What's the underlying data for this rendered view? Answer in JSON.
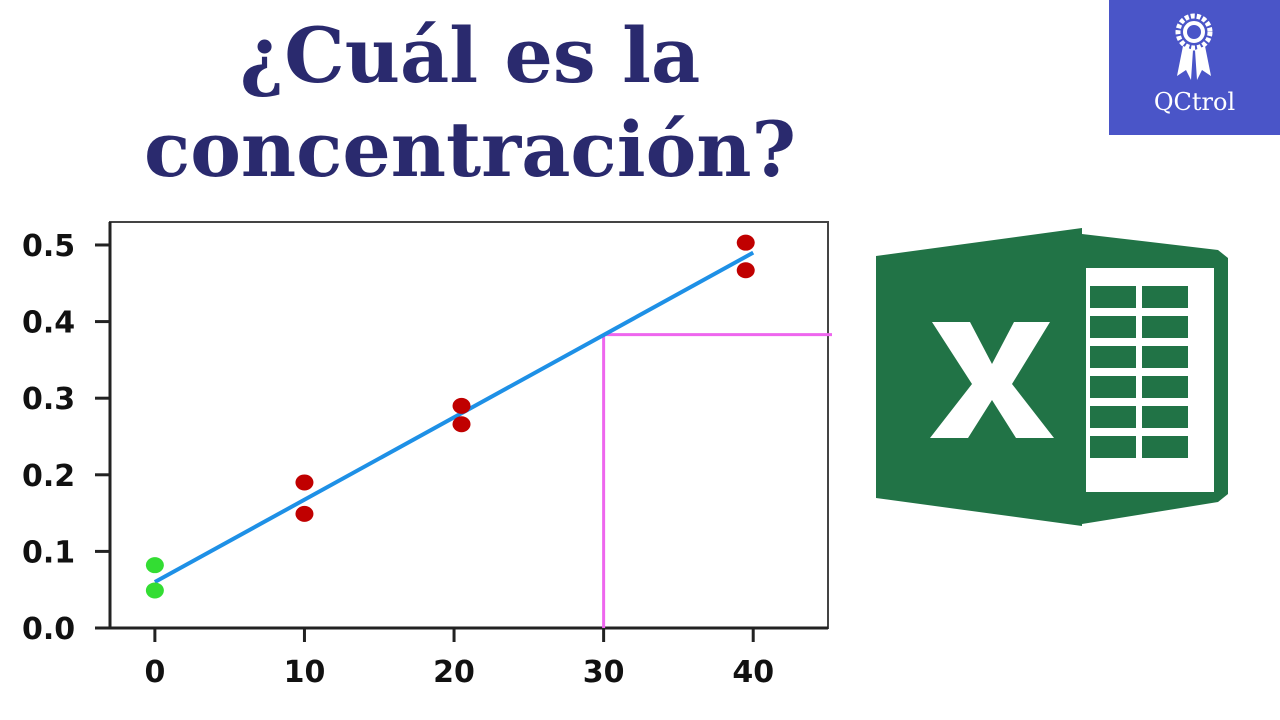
{
  "title": {
    "line1": "¿Cuál es la",
    "line2": "concentración?"
  },
  "logo": {
    "text": "QCtrol",
    "icon": "award-ribbon-icon",
    "background": "#4a55c8"
  },
  "excel_logo": {
    "icon": "excel-icon",
    "color": "#217346"
  },
  "colors": {
    "line": "#1e90e6",
    "points": "#c00000",
    "blank_points": "#33dd33",
    "guide": "#ee66ee",
    "title": "#2a2a6e"
  },
  "chart_data": {
    "type": "scatter",
    "title": "",
    "xlabel": "",
    "ylabel": "",
    "xlim": [
      -3,
      45
    ],
    "ylim": [
      0,
      0.53
    ],
    "x_ticks": [
      "0",
      "10",
      "20",
      "30",
      "40"
    ],
    "y_ticks": [
      "0.0",
      "0.1",
      "0.2",
      "0.3",
      "0.4",
      "0.5"
    ],
    "grid": false,
    "series": [
      {
        "points": [
          [
            0,
            0.082
          ],
          [
            0,
            0.049
          ]
        ],
        "color": "#33dd33"
      },
      {
        "points": [
          [
            10,
            0.19
          ],
          [
            10,
            0.149
          ],
          [
            20.5,
            0.29
          ],
          [
            20.5,
            0.266
          ],
          [
            39.5,
            0.503
          ],
          [
            39.5,
            0.467
          ]
        ],
        "color": "#c00000"
      }
    ],
    "fit_line": {
      "x": [
        0,
        40
      ],
      "y": [
        0.06,
        0.49
      ]
    },
    "guide": {
      "x": 30,
      "y": 0.383
    }
  }
}
